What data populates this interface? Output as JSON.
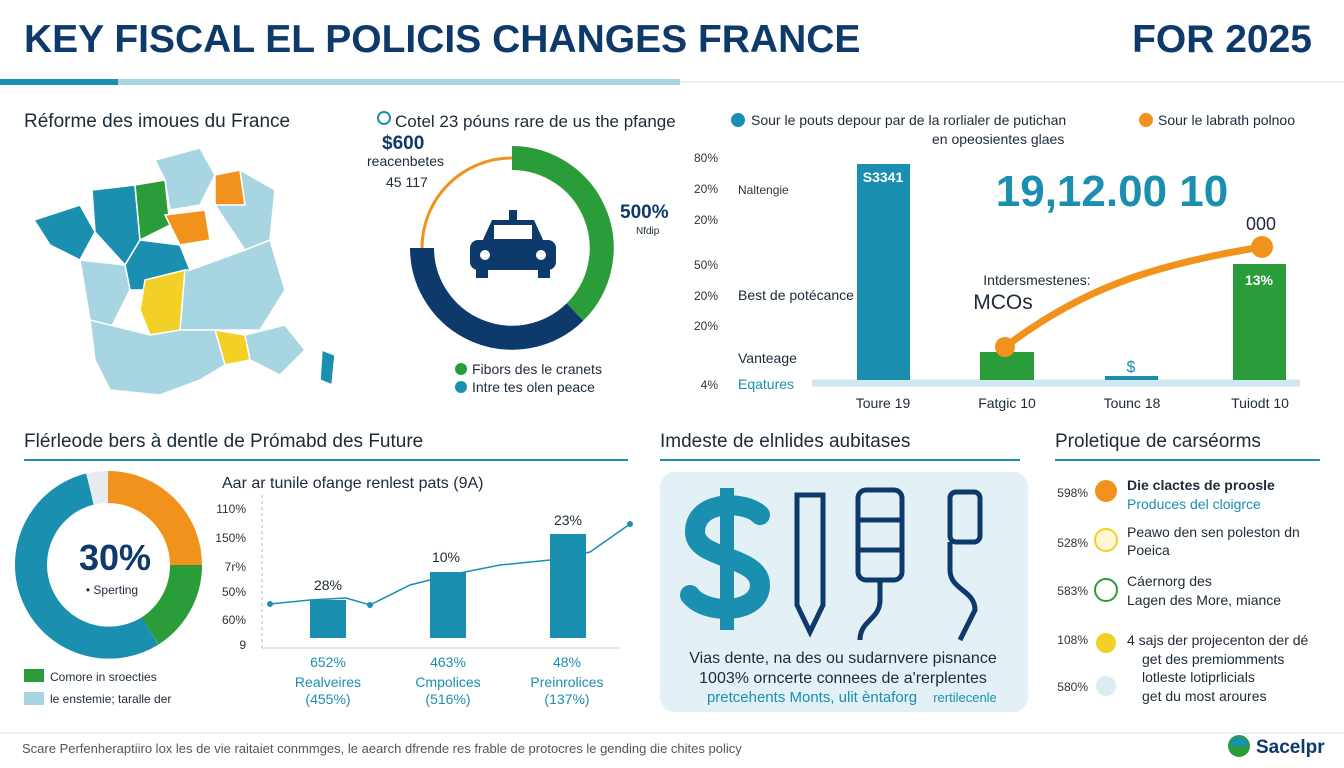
{
  "header": {
    "title": "KEY FISCAL EL POLICIS CHANGES FRANCE",
    "year": "FOR 2025"
  },
  "map_panel": {
    "title": "Réforme des imoues du France"
  },
  "donut_panel": {
    "title": "Cotel 23 póuns rare de us the pfange",
    "amount": "$600",
    "amount_caption": "reacenbetes",
    "amount_sub": "45 117",
    "percent": "500%",
    "percent_caption": "Nfdip",
    "legend": [
      "Fibors des le cranets",
      "Intre tes olen peace"
    ]
  },
  "bar_panel": {
    "legend": [
      "Sour le pouts depour par de la rorlialer de putichan",
      "en opeosientes glaes",
      "Sour le labrath polnoo"
    ],
    "axis_labels": [
      "80%",
      "20%",
      "20%",
      "50%",
      "20%",
      "20%",
      "4%"
    ],
    "row_labels": [
      "Naltengie",
      "Best de potécance",
      "Vanteage",
      "Eqatures"
    ],
    "bar_labels": [
      "S3341",
      "13%",
      "$"
    ],
    "big_number": "19,12.00 10",
    "peak_label": "000",
    "annotation": "Intdersmestenes:",
    "annotation_value": "MCOs",
    "categories": [
      "Toure 19",
      "Fatgic 10",
      "Tounc 18",
      "Tuiodt 10"
    ]
  },
  "future_panel": {
    "title": "Flérleode bers à dentle de Prómabd des Future",
    "donut_value": "30%",
    "donut_caption": "• Sperting",
    "legend": [
      "Comore in sroecties",
      "le enstemie; taralle der"
    ],
    "chart_title": "Aar ar tunile ofange renlest pats (9A)",
    "axis_labels": [
      "110%",
      "150%",
      "7r%",
      "50%",
      "60%",
      "9"
    ],
    "bar_labels": [
      "28%",
      "10%",
      "23%"
    ],
    "columns": [
      [
        "652%",
        "Realveires",
        "(455%)"
      ],
      [
        "463%",
        "Cmpolices",
        "(516%)"
      ],
      [
        "48%",
        "Preinrolices",
        "(137%)"
      ]
    ]
  },
  "impact_panel": {
    "title": "Imdeste de elnlides aubitases",
    "lines": [
      "Vias dente, na des ou sudarnvere pisnance",
      "1003% orncerte connees de a'rerplentes",
      "pretcehents Monts, ulit èntaforg",
      "rertilecenle"
    ]
  },
  "outlook_panel": {
    "title": "Proletique de carséorms",
    "items": [
      {
        "percent": "598%",
        "lines": [
          "Die clactes de proosle",
          "Produces del cloigrce"
        ]
      },
      {
        "percent": "528%",
        "lines": [
          "Peawo den sen poleston dn",
          "Poeica"
        ]
      },
      {
        "percent": "583%",
        "lines": [
          "Cáernorg des",
          "Lagen des More, miance"
        ]
      },
      {
        "percent": "108%",
        "lines": [
          "4 sajs der projecenton der dé",
          "get des premiomments",
          "lotleste lotiprlicials",
          "get du most aroures"
        ]
      },
      {
        "percent": "580%",
        "lines": []
      }
    ]
  },
  "footer": {
    "note": "Scare Perfenheraptiiro lox les de vie raitaiet conmmges, le aearch dfrende res frable de protocres le gending die chites policy",
    "brand": "Sacelpr"
  }
}
